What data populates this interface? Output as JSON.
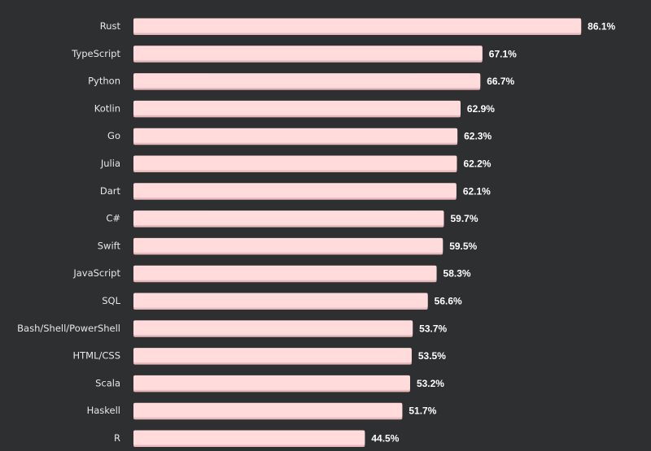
{
  "chart_data": {
    "type": "bar",
    "orientation": "horizontal",
    "categories": [
      "Rust",
      "TypeScript",
      "Python",
      "Kotlin",
      "Go",
      "Julia",
      "Dart",
      "C#",
      "Swift",
      "JavaScript",
      "SQL",
      "Bash/Shell/PowerShell",
      "HTML/CSS",
      "Scala",
      "Haskell",
      "R"
    ],
    "values": [
      86.1,
      67.1,
      66.7,
      62.9,
      62.3,
      62.2,
      62.1,
      59.7,
      59.5,
      58.3,
      56.6,
      53.7,
      53.5,
      53.2,
      51.7,
      44.5
    ],
    "value_labels": [
      "86.1%",
      "67.1%",
      "66.7%",
      "62.9%",
      "62.3%",
      "62.2%",
      "62.1%",
      "59.7%",
      "59.5%",
      "58.3%",
      "56.6%",
      "53.7%",
      "53.5%",
      "53.2%",
      "51.7%",
      "44.5%"
    ],
    "unit": "%",
    "xlim": [
      0,
      100
    ],
    "grid": false,
    "legend": "none",
    "colors": {
      "background": "#2d2f31",
      "bar": "#ffdbdc",
      "bar_shadow": "#e8b9bb",
      "label": "#e8e8e8",
      "value_label": "#ffffff"
    }
  }
}
